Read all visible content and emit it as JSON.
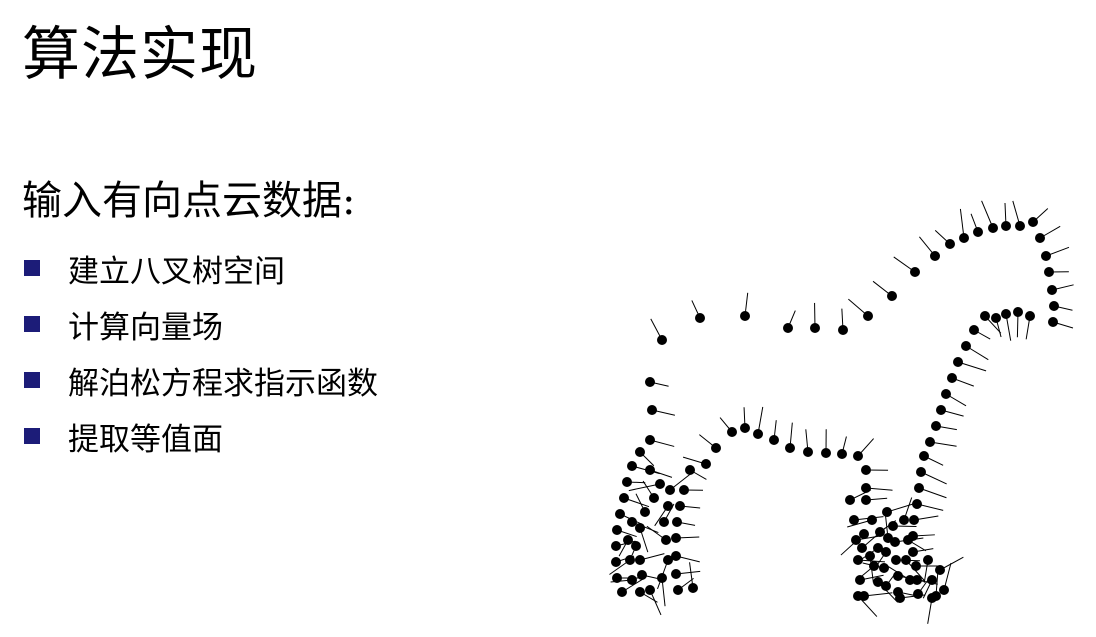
{
  "slide": {
    "title": "算法实现",
    "subtitle": "输入有向点云数据:",
    "bullets": [
      "建立八叉树空间",
      "计算向量场",
      "解泊松方程求指示函数",
      "提取等值面"
    ],
    "bullet_color": "#1c1c78"
  },
  "figure": {
    "point_color": "#000000",
    "normal_color": "#000000"
  }
}
